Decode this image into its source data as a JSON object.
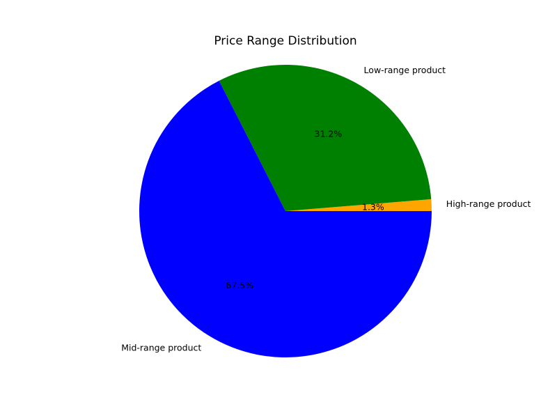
{
  "chart_data": {
    "type": "pie",
    "title": "Price Range Distribution",
    "categories": [
      "High-range product",
      "Low-range product",
      "Mid-range product"
    ],
    "values": [
      1.3,
      31.2,
      67.5
    ],
    "labels": [
      "High-range product",
      "Low-range product",
      "Mid-range product"
    ],
    "percent_labels": [
      "1.3%",
      "31.2%",
      "67.5%"
    ],
    "colors": [
      "#ffa500",
      "#008000",
      "#0000ff"
    ],
    "start_angle_deg": 0,
    "direction": "counterclockwise",
    "legend": "none"
  }
}
